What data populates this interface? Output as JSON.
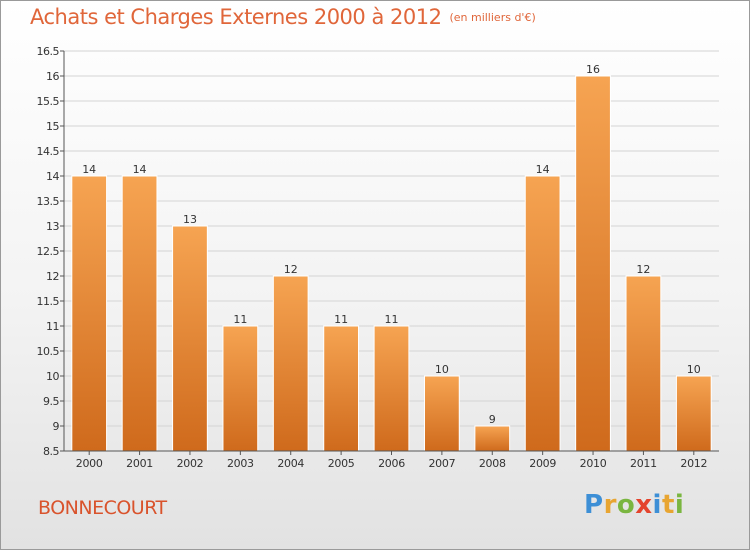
{
  "header": {
    "title": "Achats et Charges Externes 2000 à 2012",
    "subtitle": "(en milliers d'€)"
  },
  "footer": {
    "commune": "BONNECOURT",
    "logo_letters": [
      "P",
      "r",
      "o",
      "x",
      "i",
      "t",
      "i"
    ]
  },
  "colors": {
    "bar_light": "#f6a452",
    "bar_dark": "#cf6a1c",
    "title": "#e0663a",
    "logo": [
      "#3d8fd6",
      "#e8a531",
      "#7ab640",
      "#e4442d",
      "#3d8fd6",
      "#e8a531",
      "#7ab640"
    ]
  },
  "chart_data": {
    "type": "bar",
    "categories": [
      "2000",
      "2001",
      "2002",
      "2003",
      "2004",
      "2005",
      "2006",
      "2007",
      "2008",
      "2009",
      "2010",
      "2011",
      "2012"
    ],
    "values": [
      14,
      14,
      13,
      11,
      12,
      11,
      11,
      10,
      9,
      14,
      16,
      12,
      10
    ],
    "value_labels": [
      "14",
      "14",
      "13",
      "11",
      "12",
      "11",
      "11",
      "10",
      "9",
      "14",
      "16",
      "12",
      "10"
    ],
    "ylim": [
      8.5,
      16.5
    ],
    "yticks": [
      "8.5",
      "9",
      "9.5",
      "10",
      "10.5",
      "11",
      "11.5",
      "12",
      "12.5",
      "13",
      "13.5",
      "14",
      "14.5",
      "15",
      "15.5",
      "16",
      "16.5"
    ],
    "grid": true,
    "legend": "none"
  }
}
